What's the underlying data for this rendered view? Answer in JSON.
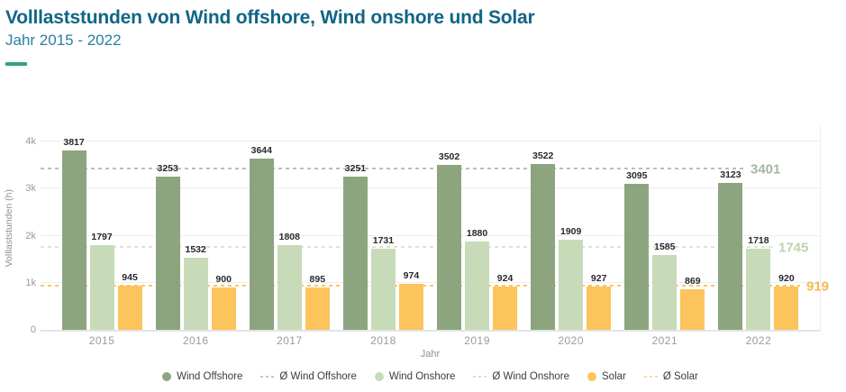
{
  "header": {
    "title": "Volllaststunden von Wind offshore, Wind onshore und Solar",
    "subtitle": "Jahr 2015 - 2022",
    "title_color": "#106586",
    "subtitle_color": "#2A80A2",
    "accent_color": "#2FA18C"
  },
  "chart_data": {
    "type": "bar",
    "title": "Volllaststunden von Wind offshore, Wind onshore und Solar",
    "subtitle": "Jahr 2015 - 2022",
    "xlabel": "Jahr",
    "ylabel": "Volllaststunden (h)",
    "categories": [
      "2015",
      "2016",
      "2017",
      "2018",
      "2019",
      "2020",
      "2021",
      "2022"
    ],
    "series": [
      {
        "name": "Wind Offshore",
        "color": "#8CA57F",
        "values": [
          3817,
          3253,
          3644,
          3251,
          3502,
          3522,
          3095,
          3123
        ]
      },
      {
        "name": "Wind Onshore",
        "color": "#C7DBB8",
        "values": [
          1797,
          1532,
          1808,
          1731,
          1880,
          1909,
          1585,
          1718
        ]
      },
      {
        "name": "Solar",
        "color": "#FBC45C",
        "values": [
          945,
          900,
          895,
          974,
          924,
          927,
          869,
          920
        ]
      }
    ],
    "average_lines": [
      {
        "name": "Ø Wind Offshore",
        "value": 3401,
        "line_color": "#B8C1B1",
        "label_color": "#A4B6A4"
      },
      {
        "name": "Ø Wind Onshore",
        "value": 1745,
        "line_color": "#DCE6D1",
        "label_color": "#BFD3AE"
      },
      {
        "name": "Ø Solar",
        "value": 919,
        "line_color": "#F9C667",
        "label_color": "#F9B84D"
      }
    ],
    "y_ticks": [
      {
        "value": 0,
        "label": "0"
      },
      {
        "value": 1000,
        "label": "1k"
      },
      {
        "value": 2000,
        "label": "2k"
      },
      {
        "value": 3000,
        "label": "3k"
      },
      {
        "value": 4000,
        "label": "4k"
      }
    ],
    "ylim": [
      0,
      4325
    ],
    "grid": true,
    "legend_position": "bottom",
    "legend": [
      {
        "label": "Wind Offshore",
        "swatch": "dot",
        "color": "#8CA57F"
      },
      {
        "label": "Ø Wind Offshore",
        "swatch": "dash",
        "color": "#C3C9C0"
      },
      {
        "label": "Wind Onshore",
        "swatch": "dot",
        "color": "#C7DBB8"
      },
      {
        "label": "Ø Wind Onshore",
        "swatch": "dash",
        "color": "#D9E3D0"
      },
      {
        "label": "Solar",
        "swatch": "dot",
        "color": "#FBC45C"
      },
      {
        "label": "Ø Solar",
        "swatch": "dash",
        "color": "#F8D9A2"
      }
    ]
  }
}
